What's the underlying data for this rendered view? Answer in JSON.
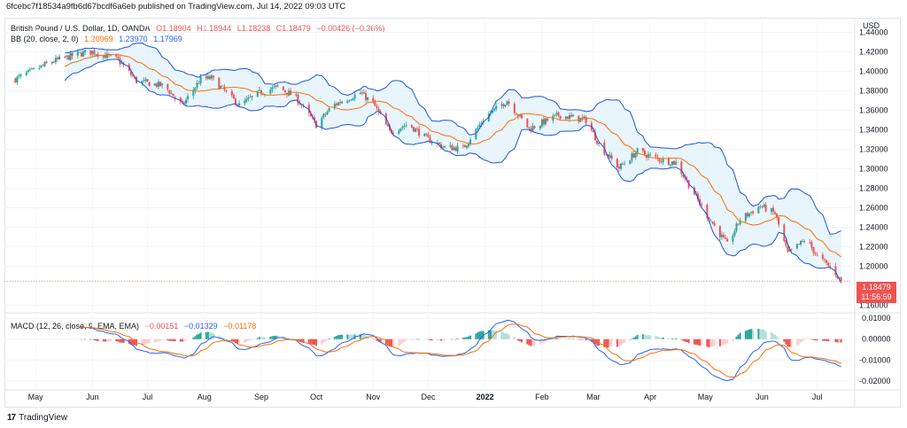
{
  "header": {
    "publisher_line": "6fcebc7f18534a9fb6d67bcdf6a6eb published on TradingView.com, Jul 14, 2022 09:03 UTC"
  },
  "legend": {
    "symbol": "British Pound / U.S. Dollar, 1D, OANDA",
    "open": "O1.18904",
    "high": "H1.18944",
    "low": "L1.18238",
    "close": "C1.18479",
    "change": "−0.00426 (−0.36%)",
    "bb_name": "BB (20, close, 2, 0)",
    "bb_basis": "1.20969",
    "bb_upper": "1.23970",
    "bb_lower": "1.17969",
    "macd_name": "MACD (12, 26, close, 9, EMA, EMA)",
    "macd_hist": "−0.00151",
    "macd_line": "−0.01329",
    "macd_signal": "−0.01178"
  },
  "price_box": {
    "value": "1.18479",
    "countdown": "11:56:59"
  },
  "footer": {
    "brand": "TradingView"
  },
  "colors": {
    "up": "#26a69a",
    "down": "#ef5350",
    "bb_band": "#1e53e5",
    "bb_basis": "#ff6d00",
    "bb_fill": "#e3f2fd",
    "macd_line": "#2962ff",
    "signal_line": "#ff6d00",
    "hist_up": "#26a69a",
    "hist_up_light": "#b2dfdb",
    "hist_down": "#ef5350",
    "hist_down_light": "#ffcdd2"
  },
  "chart_data": [
    {
      "type": "candlestick",
      "title": "British Pound / U.S. Dollar, 1D, OANDA",
      "ylabel": "USD",
      "yticks": [
        "1.44000",
        "1.42000",
        "1.40000",
        "1.38000",
        "1.36000",
        "1.34000",
        "1.32000",
        "1.30000",
        "1.28000",
        "1.26000",
        "1.24000",
        "1.22000",
        "1.20000",
        "1.16000"
      ],
      "ylim": [
        1.155,
        1.455
      ],
      "xticks": [
        "May",
        "Jun",
        "Jul",
        "Aug",
        "Sep",
        "Oct",
        "Nov",
        "Dec",
        "2022",
        "Feb",
        "Mar",
        "Apr",
        "May",
        "Jun",
        "Jul"
      ],
      "close_path": [
        [
          "2021-04-20",
          1.392
        ],
        [
          "2021-05-10",
          1.41
        ],
        [
          "2021-05-25",
          1.418
        ],
        [
          "2021-06-01",
          1.42
        ],
        [
          "2021-06-15",
          1.412
        ],
        [
          "2021-06-25",
          1.39
        ],
        [
          "2021-07-10",
          1.385
        ],
        [
          "2021-07-20",
          1.365
        ],
        [
          "2021-07-30",
          1.392
        ],
        [
          "2021-08-05",
          1.393
        ],
        [
          "2021-08-20",
          1.365
        ],
        [
          "2021-08-31",
          1.378
        ],
        [
          "2021-09-10",
          1.384
        ],
        [
          "2021-09-20",
          1.373
        ],
        [
          "2021-10-01",
          1.345
        ],
        [
          "2021-10-10",
          1.365
        ],
        [
          "2021-10-25",
          1.378
        ],
        [
          "2021-11-01",
          1.367
        ],
        [
          "2021-11-10",
          1.338
        ],
        [
          "2021-11-20",
          1.346
        ],
        [
          "2021-12-01",
          1.33
        ],
        [
          "2021-12-10",
          1.322
        ],
        [
          "2021-12-20",
          1.321
        ],
        [
          "2022-01-01",
          1.353
        ],
        [
          "2022-01-13",
          1.37
        ],
        [
          "2022-01-25",
          1.341
        ],
        [
          "2022-02-10",
          1.355
        ],
        [
          "2022-02-25",
          1.35
        ],
        [
          "2022-03-05",
          1.322
        ],
        [
          "2022-03-15",
          1.301
        ],
        [
          "2022-03-25",
          1.318
        ],
        [
          "2022-04-05",
          1.31
        ],
        [
          "2022-04-15",
          1.306
        ],
        [
          "2022-04-22",
          1.284
        ],
        [
          "2022-05-01",
          1.255
        ],
        [
          "2022-05-13",
          1.222
        ],
        [
          "2022-05-20",
          1.248
        ],
        [
          "2022-05-31",
          1.262
        ],
        [
          "2022-06-08",
          1.254
        ],
        [
          "2022-06-15",
          1.213
        ],
        [
          "2022-06-25",
          1.228
        ],
        [
          "2022-07-01",
          1.21
        ],
        [
          "2022-07-10",
          1.196
        ],
        [
          "2022-07-14",
          1.18479
        ]
      ],
      "bollinger": {
        "period": 20,
        "stddev": 2,
        "last": {
          "basis": 1.20969,
          "upper": 1.2397,
          "lower": 1.17969
        }
      },
      "last_close": 1.18479
    },
    {
      "type": "macd",
      "title": "MACD (12, 26, close, 9, EMA, EMA)",
      "yticks": [
        "0.01000",
        "0.00000",
        "-0.01000",
        "-0.02000"
      ],
      "ylim": [
        -0.0235,
        0.0118
      ],
      "last": {
        "histogram": -0.00151,
        "macd": -0.01329,
        "signal": -0.01178
      }
    }
  ]
}
